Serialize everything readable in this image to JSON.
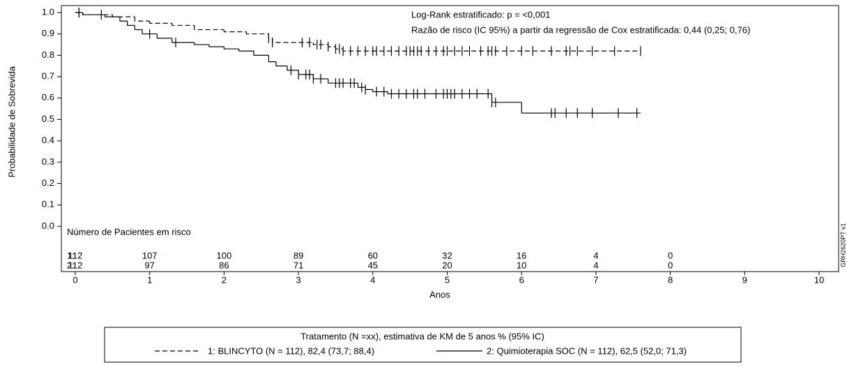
{
  "chart_data": {
    "type": "km",
    "ylabel": "Probabilidade de Sobrevida",
    "xlabel": "Anos",
    "annotations": [
      "Log-Rank estratificado: p = <0,001",
      "Razão de risco (IC 95%) a partir da regressão de Cox estratificada: 0,44 (0,25; 0,76)"
    ],
    "side_note": "GRH2620PT v1",
    "xlim": [
      0,
      10
    ],
    "xticks": [
      0,
      1,
      2,
      3,
      4,
      5,
      6,
      7,
      8,
      9,
      10
    ],
    "ylim": [
      0,
      1
    ],
    "yticks": [
      {
        "value": 0,
        "label": "0.0"
      },
      0.1,
      0.2,
      0.3,
      0.4,
      0.5,
      0.6,
      0.7,
      0.8,
      0.9,
      {
        "value": 1,
        "label": "1.0"
      }
    ],
    "legend_title": "Tratamento (N =xx), estimativa de KM de 5 anos % (95% IC)",
    "series": [
      {
        "name": "1: BLINCYTO (N = 112), 82,4 (73,7; 88,4)",
        "color": "#000000",
        "line_style": "dashed",
        "x": [
          0,
          0.1,
          0.5,
          0.8,
          1.0,
          1.3,
          1.6,
          2.0,
          2.3,
          2.6,
          2.65,
          3.2,
          3.4,
          3.5,
          3.6,
          7.6
        ],
        "values": [
          1.0,
          0.99,
          0.98,
          0.96,
          0.95,
          0.94,
          0.92,
          0.91,
          0.9,
          0.88,
          0.86,
          0.85,
          0.84,
          0.83,
          0.82,
          0.82
        ],
        "censored": [
          0.05,
          0.35,
          2.6,
          2.65,
          3.05,
          3.15,
          3.25,
          3.3,
          3.4,
          3.5,
          3.55,
          3.6,
          3.7,
          3.8,
          3.9,
          4.0,
          4.05,
          4.15,
          4.25,
          4.35,
          4.45,
          4.5,
          4.55,
          4.6,
          4.65,
          4.75,
          4.85,
          4.95,
          5.0,
          5.1,
          5.2,
          5.3,
          5.45,
          5.55,
          5.6,
          5.65,
          5.8,
          6.0,
          6.15,
          6.4,
          6.6,
          6.65,
          6.75,
          6.95,
          7.25,
          7.6
        ]
      },
      {
        "name": "2: Quimioterapia SOC (N = 112), 62,5 (52,0; 71,3)",
        "color": "#000000",
        "line_style": "solid",
        "x": [
          0,
          0.1,
          0.4,
          0.6,
          0.7,
          0.8,
          0.9,
          1.1,
          1.3,
          1.6,
          1.8,
          2.0,
          2.2,
          2.4,
          2.6,
          2.7,
          2.85,
          3.0,
          3.2,
          3.4,
          3.8,
          3.9,
          4.0,
          4.2,
          5.6,
          6.0,
          7.6
        ],
        "values": [
          1.0,
          0.99,
          0.98,
          0.96,
          0.94,
          0.92,
          0.9,
          0.88,
          0.86,
          0.85,
          0.84,
          0.83,
          0.82,
          0.8,
          0.77,
          0.75,
          0.73,
          0.71,
          0.69,
          0.67,
          0.65,
          0.64,
          0.63,
          0.62,
          0.58,
          0.53,
          0.53
        ],
        "censored": [
          0.05,
          1.0,
          1.35,
          2.9,
          3.0,
          3.1,
          3.15,
          3.2,
          3.3,
          3.5,
          3.55,
          3.6,
          3.7,
          3.75,
          3.85,
          3.9,
          4.05,
          4.15,
          4.25,
          4.35,
          4.45,
          4.55,
          4.6,
          4.7,
          4.85,
          4.95,
          5.0,
          5.05,
          5.1,
          5.2,
          5.3,
          5.4,
          5.55,
          5.6,
          5.65,
          6.4,
          6.45,
          6.6,
          6.75,
          6.95,
          7.3,
          7.55
        ]
      }
    ],
    "risk_table": {
      "title": "Número de Pacientes em risco",
      "x": [
        0,
        1,
        2,
        3,
        4,
        5,
        6,
        7,
        8
      ],
      "rows": [
        {
          "label": "1:",
          "values": [
            112,
            107,
            100,
            89,
            60,
            32,
            16,
            4,
            0
          ]
        },
        {
          "label": "2:",
          "values": [
            112,
            97,
            86,
            71,
            45,
            20,
            10,
            4,
            0
          ]
        }
      ]
    }
  }
}
